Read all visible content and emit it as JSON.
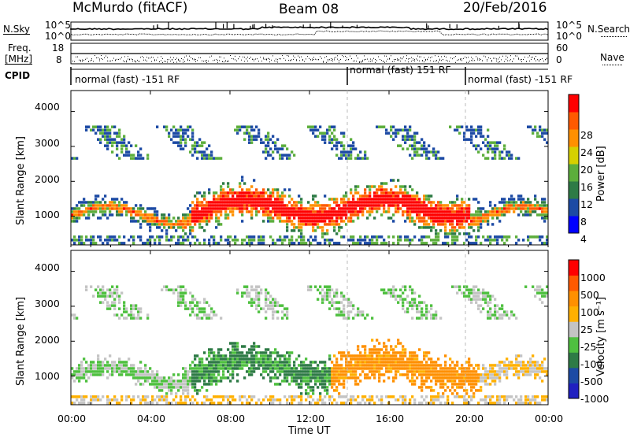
{
  "header": {
    "station": "McMurdo (fitACF)",
    "beam": "Beam 08",
    "date": "20/Feb/2016"
  },
  "aux_panels": {
    "nsky_label": "N.Sky",
    "nsearch_label": "N.Search",
    "freq_label_line1": "Freq.",
    "freq_label_line2": "[MHz]",
    "nave_label": "Nave",
    "cpid_label": "CPID",
    "noise_ticks_left": [
      "10^5",
      "10^0"
    ],
    "noise_ticks_right": [
      "10^5",
      "10^0"
    ],
    "freq_ticks": [
      "18",
      "8"
    ],
    "nave_ticks": [
      "60",
      "0"
    ]
  },
  "cpid_segments": [
    {
      "label": "normal (fast) -151 RF",
      "start": "00:00",
      "end": "14:00"
    },
    {
      "label": "normal (fast) 151 RF",
      "start": "14:00",
      "end": "20:00"
    },
    {
      "label": "normal (fast) -151 RF",
      "start": "20:00",
      "end": "24:00"
    }
  ],
  "chart_data": [
    {
      "type": "heatmap",
      "name": "power",
      "ylabel": "Slant Range [km]",
      "colorbar_label": "Power [dB]",
      "colorbar_ticks": [
        "28",
        "24",
        "20",
        "16",
        "12",
        "8",
        "4"
      ],
      "colorbar_colors": [
        "#0000ff",
        "#1c4aa4",
        "#2e7b46",
        "#5cae3c",
        "#d6d000",
        "#ff9000",
        "#ff5a00",
        "#ff0000"
      ],
      "yticks": [
        "1000",
        "2000",
        "3000",
        "4000"
      ],
      "ylim": [
        180,
        4600
      ]
    },
    {
      "type": "heatmap",
      "name": "velocity",
      "ylabel": "Slant Range [km]",
      "colorbar_label": "Velocity [m s⁻¹]",
      "colorbar_ticks": [
        "1000",
        "500",
        "100",
        "25",
        "-25",
        "-100",
        "-500",
        "-1000"
      ],
      "colorbar_colors": [
        "#ff0000",
        "#ff5a00",
        "#ff9000",
        "#ffb000",
        "#c4c4c4",
        "#4fc040",
        "#2e7b46",
        "#1c4aa4",
        "#2020c0"
      ],
      "yticks": [
        "1000",
        "2000",
        "3000",
        "4000"
      ],
      "ylim": [
        180,
        4600
      ]
    }
  ],
  "time_axis": {
    "xlabel": "Time UT",
    "ticks": [
      "00:00",
      "04:00",
      "08:00",
      "12:00",
      "16:00",
      "20:00",
      "00:00"
    ]
  }
}
